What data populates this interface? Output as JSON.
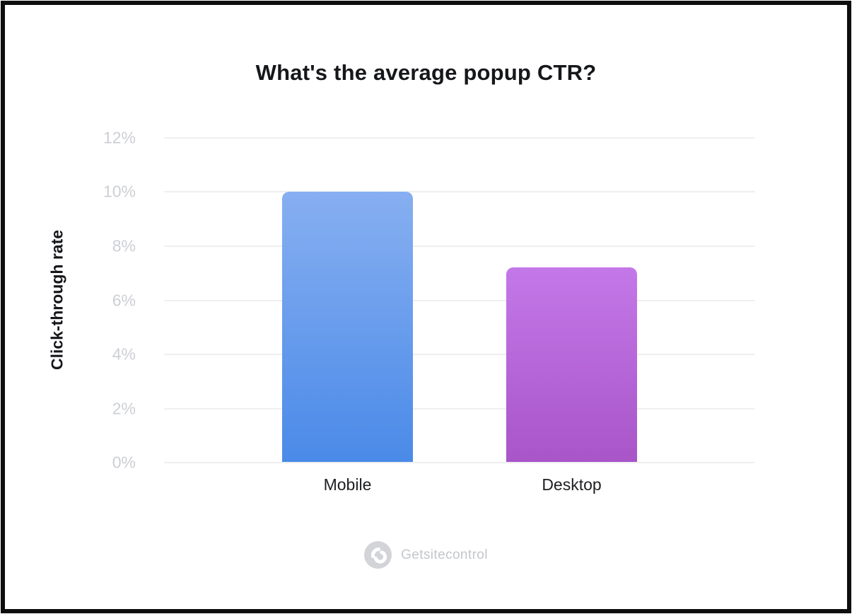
{
  "page": {
    "background": "#ffffff",
    "frame_color": "#0e0e0e"
  },
  "chart_data": {
    "type": "bar",
    "title": "What's the average popup CTR?",
    "xlabel": "",
    "ylabel": "Click-through rate",
    "categories": [
      "Mobile",
      "Desktop"
    ],
    "values": [
      10,
      7.2
    ],
    "unit": "%",
    "ylim": [
      0,
      12
    ],
    "yticks": [
      "12%",
      "10%",
      "8%",
      "6%",
      "4%",
      "2%",
      "0%"
    ],
    "grid": true,
    "legend": false,
    "gridline_color": "#efeff1",
    "tick_color": "#cccfd4",
    "bar_colors": [
      {
        "name": "mobile-blue",
        "top": "#87aff1",
        "bottom": "#4a8ae8"
      },
      {
        "name": "desktop-purple",
        "top": "#c478e8",
        "bottom": "#a855c8"
      }
    ]
  },
  "footer": {
    "brand": "Getsitecontrol",
    "logo_icon": "getsitecontrol-logo-icon",
    "logo_circle_color": "#d2d4d7",
    "logo_mark_color": "#ffffff",
    "brand_text_color": "#c4c6ca"
  }
}
